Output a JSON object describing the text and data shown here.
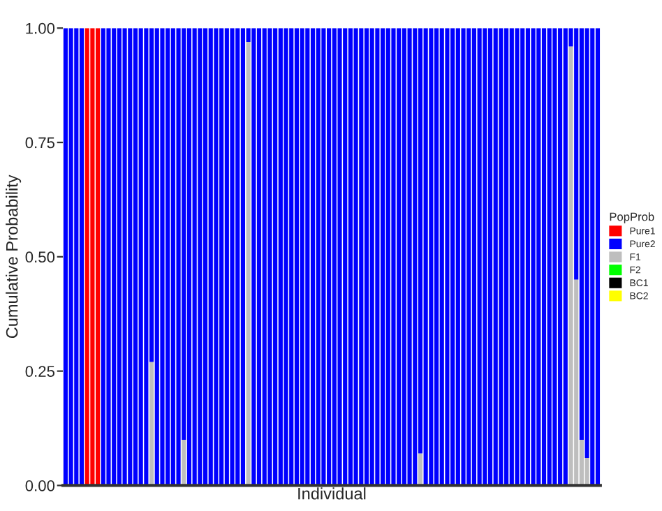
{
  "chart_data": {
    "type": "bar",
    "stacked": true,
    "xlabel": "Individual",
    "ylabel": "Cumulative Probability",
    "legend_title": "PopProb",
    "legend": "right",
    "tick_labels": "y",
    "grid": false,
    "categories": [
      null,
      null,
      null,
      null,
      null,
      null,
      null,
      null,
      null,
      null,
      null,
      null,
      null,
      null,
      null,
      null,
      null,
      null,
      null,
      null,
      null,
      null,
      null,
      null,
      null,
      null,
      null,
      null,
      null,
      null,
      null,
      null,
      null,
      null,
      null,
      null,
      null,
      null,
      null,
      null,
      null,
      null,
      null,
      null,
      null,
      null,
      null,
      null,
      null,
      null,
      null,
      null,
      null,
      null,
      null,
      null,
      null,
      null,
      null,
      null,
      null,
      null,
      null,
      null,
      null,
      null,
      null,
      null,
      null,
      null,
      null,
      null,
      null,
      null,
      null,
      null,
      null,
      null,
      null,
      null,
      null,
      null,
      null,
      null,
      null,
      null,
      null,
      null,
      null,
      null,
      null,
      null,
      null,
      null,
      null,
      null,
      null,
      null,
      null,
      null
    ],
    "ylim": [
      0,
      1
    ],
    "yticks": [
      {
        "value": 0,
        "label": "0.00"
      },
      {
        "value": 0.25,
        "label": "0.25"
      },
      {
        "value": 0.5,
        "label": "0.50"
      },
      {
        "value": 0.75,
        "label": "0.75"
      },
      {
        "value": 1,
        "label": "1.00"
      }
    ],
    "series": [
      {
        "name": "BC2",
        "color": "#ffff00",
        "values": [
          0,
          0,
          0,
          0,
          0,
          0,
          0,
          0,
          0,
          0,
          0,
          0,
          0,
          0,
          0,
          0,
          0,
          0,
          0,
          0,
          0,
          0,
          0,
          0,
          0,
          0,
          0,
          0,
          0,
          0,
          0,
          0,
          0,
          0,
          0,
          0,
          0,
          0,
          0,
          0,
          0,
          0,
          0,
          0,
          0,
          0,
          0,
          0,
          0,
          0,
          0,
          0,
          0,
          0,
          0,
          0,
          0,
          0,
          0,
          0,
          0,
          0,
          0,
          0,
          0,
          0,
          0,
          0,
          0,
          0,
          0,
          0,
          0,
          0,
          0,
          0,
          0,
          0,
          0,
          0,
          0,
          0,
          0,
          0,
          0,
          0,
          0,
          0,
          0,
          0,
          0,
          0,
          0,
          0,
          0,
          0,
          0,
          0,
          0,
          0
        ]
      },
      {
        "name": "BC1",
        "color": "#000000",
        "values": [
          0,
          0,
          0,
          0,
          0,
          0,
          0,
          0,
          0,
          0,
          0,
          0,
          0,
          0,
          0,
          0,
          0,
          0,
          0,
          0,
          0,
          0,
          0,
          0,
          0,
          0,
          0,
          0,
          0,
          0,
          0,
          0,
          0,
          0,
          0,
          0,
          0,
          0,
          0,
          0,
          0,
          0,
          0,
          0,
          0,
          0,
          0,
          0,
          0,
          0,
          0,
          0,
          0,
          0,
          0,
          0,
          0,
          0,
          0,
          0,
          0,
          0,
          0,
          0,
          0,
          0,
          0,
          0,
          0,
          0,
          0,
          0,
          0,
          0,
          0,
          0,
          0,
          0,
          0,
          0,
          0,
          0,
          0,
          0,
          0,
          0,
          0,
          0,
          0,
          0,
          0,
          0,
          0,
          0,
          0,
          0,
          0,
          0,
          0,
          0
        ]
      },
      {
        "name": "F2",
        "color": "#00ff00",
        "values": [
          0,
          0,
          0,
          0,
          0,
          0,
          0,
          0,
          0,
          0,
          0,
          0,
          0,
          0,
          0,
          0,
          0,
          0,
          0,
          0,
          0,
          0,
          0,
          0,
          0,
          0,
          0,
          0,
          0,
          0,
          0,
          0,
          0,
          0,
          0,
          0,
          0,
          0,
          0,
          0,
          0,
          0,
          0,
          0,
          0,
          0,
          0,
          0,
          0,
          0,
          0,
          0,
          0,
          0,
          0,
          0,
          0,
          0,
          0,
          0,
          0,
          0,
          0,
          0,
          0,
          0,
          0,
          0,
          0,
          0,
          0,
          0,
          0,
          0,
          0,
          0,
          0,
          0,
          0,
          0,
          0,
          0,
          0,
          0,
          0,
          0,
          0,
          0,
          0,
          0,
          0,
          0,
          0,
          0,
          0,
          0,
          0,
          0,
          0,
          0
        ]
      },
      {
        "name": "F1",
        "color": "#bebebe",
        "values": [
          0,
          0,
          0,
          0,
          0,
          0,
          0,
          0,
          0,
          0,
          0,
          0,
          0,
          0,
          0,
          0,
          0.27,
          0,
          0,
          0,
          0,
          0,
          0.1,
          0,
          0,
          0,
          0,
          0,
          0,
          0,
          0,
          0,
          0,
          0,
          0.97,
          0,
          0,
          0,
          0,
          0,
          0,
          0,
          0,
          0,
          0,
          0,
          0,
          0,
          0,
          0,
          0,
          0,
          0,
          0,
          0,
          0,
          0,
          0,
          0,
          0,
          0,
          0,
          0,
          0,
          0,
          0,
          0.07,
          0,
          0,
          0,
          0,
          0,
          0,
          0,
          0,
          0,
          0,
          0,
          0,
          0,
          0,
          0,
          0,
          0,
          0,
          0,
          0,
          0,
          0,
          0,
          0,
          0,
          0,
          0,
          0.96,
          0.45,
          0.1,
          0.06,
          0,
          0
        ]
      },
      {
        "name": "Pure2",
        "color": "#0000ff",
        "values": [
          1,
          1,
          1,
          1,
          0,
          0,
          0,
          1,
          1,
          1,
          1,
          1,
          1,
          1,
          1,
          1,
          0.73,
          1,
          1,
          1,
          1,
          1,
          0.9,
          1,
          1,
          1,
          1,
          1,
          1,
          1,
          1,
          1,
          1,
          1,
          0.03,
          1,
          1,
          1,
          1,
          1,
          1,
          1,
          1,
          1,
          1,
          1,
          1,
          1,
          1,
          1,
          1,
          1,
          1,
          1,
          1,
          1,
          1,
          1,
          1,
          1,
          1,
          1,
          1,
          1,
          1,
          1,
          0.93,
          1,
          1,
          1,
          1,
          1,
          1,
          1,
          1,
          1,
          1,
          1,
          1,
          1,
          1,
          1,
          1,
          1,
          1,
          1,
          1,
          1,
          1,
          1,
          1,
          1,
          1,
          1,
          0.04,
          0.55,
          0.9,
          0.94,
          1,
          1
        ]
      },
      {
        "name": "Pure1",
        "color": "#ff0000",
        "values": [
          0,
          0,
          0,
          0,
          1,
          1,
          1,
          0,
          0,
          0,
          0,
          0,
          0,
          0,
          0,
          0,
          0,
          0,
          0,
          0,
          0,
          0,
          0,
          0,
          0,
          0,
          0,
          0,
          0,
          0,
          0,
          0,
          0,
          0,
          0,
          0,
          0,
          0,
          0,
          0,
          0,
          0,
          0,
          0,
          0,
          0,
          0,
          0,
          0,
          0,
          0,
          0,
          0,
          0,
          0,
          0,
          0,
          0,
          0,
          0,
          0,
          0,
          0,
          0,
          0,
          0,
          0,
          0,
          0,
          0,
          0,
          0,
          0,
          0,
          0,
          0,
          0,
          0,
          0,
          0,
          0,
          0,
          0,
          0,
          0,
          0,
          0,
          0,
          0,
          0,
          0,
          0,
          0,
          0,
          0,
          0,
          0,
          0,
          0,
          0
        ]
      }
    ]
  }
}
